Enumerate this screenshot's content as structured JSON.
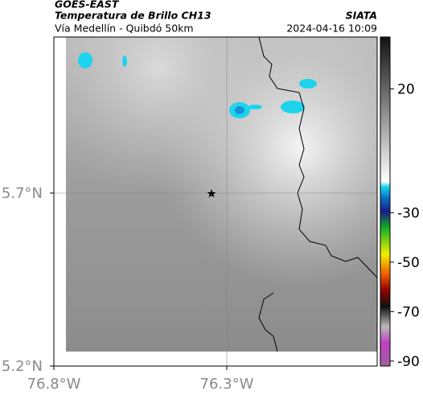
{
  "header": {
    "product": "GOES-EAST",
    "title": "Temperatura de Brillo CH13",
    "subtitle": "Vía Medellín - Quibdó 50km",
    "source": "SIATA",
    "datetime": "2024-04-16 10:09"
  },
  "map": {
    "xlim": [
      -76.8,
      -75.865
    ],
    "ylim": [
      5.2,
      6.151
    ],
    "xticks": [
      {
        "value": -76.8,
        "label": "76.8°W"
      },
      {
        "value": -76.3,
        "label": "76.3°W"
      }
    ],
    "yticks": [
      {
        "value": 5.7,
        "label": "5.7°N"
      },
      {
        "value": 5.2,
        "label": "5.2°N"
      }
    ]
  },
  "colorbar": {
    "lim": [
      -92,
      41
    ],
    "ticks": [
      20,
      -30,
      -50,
      -70,
      -90
    ]
  }
}
